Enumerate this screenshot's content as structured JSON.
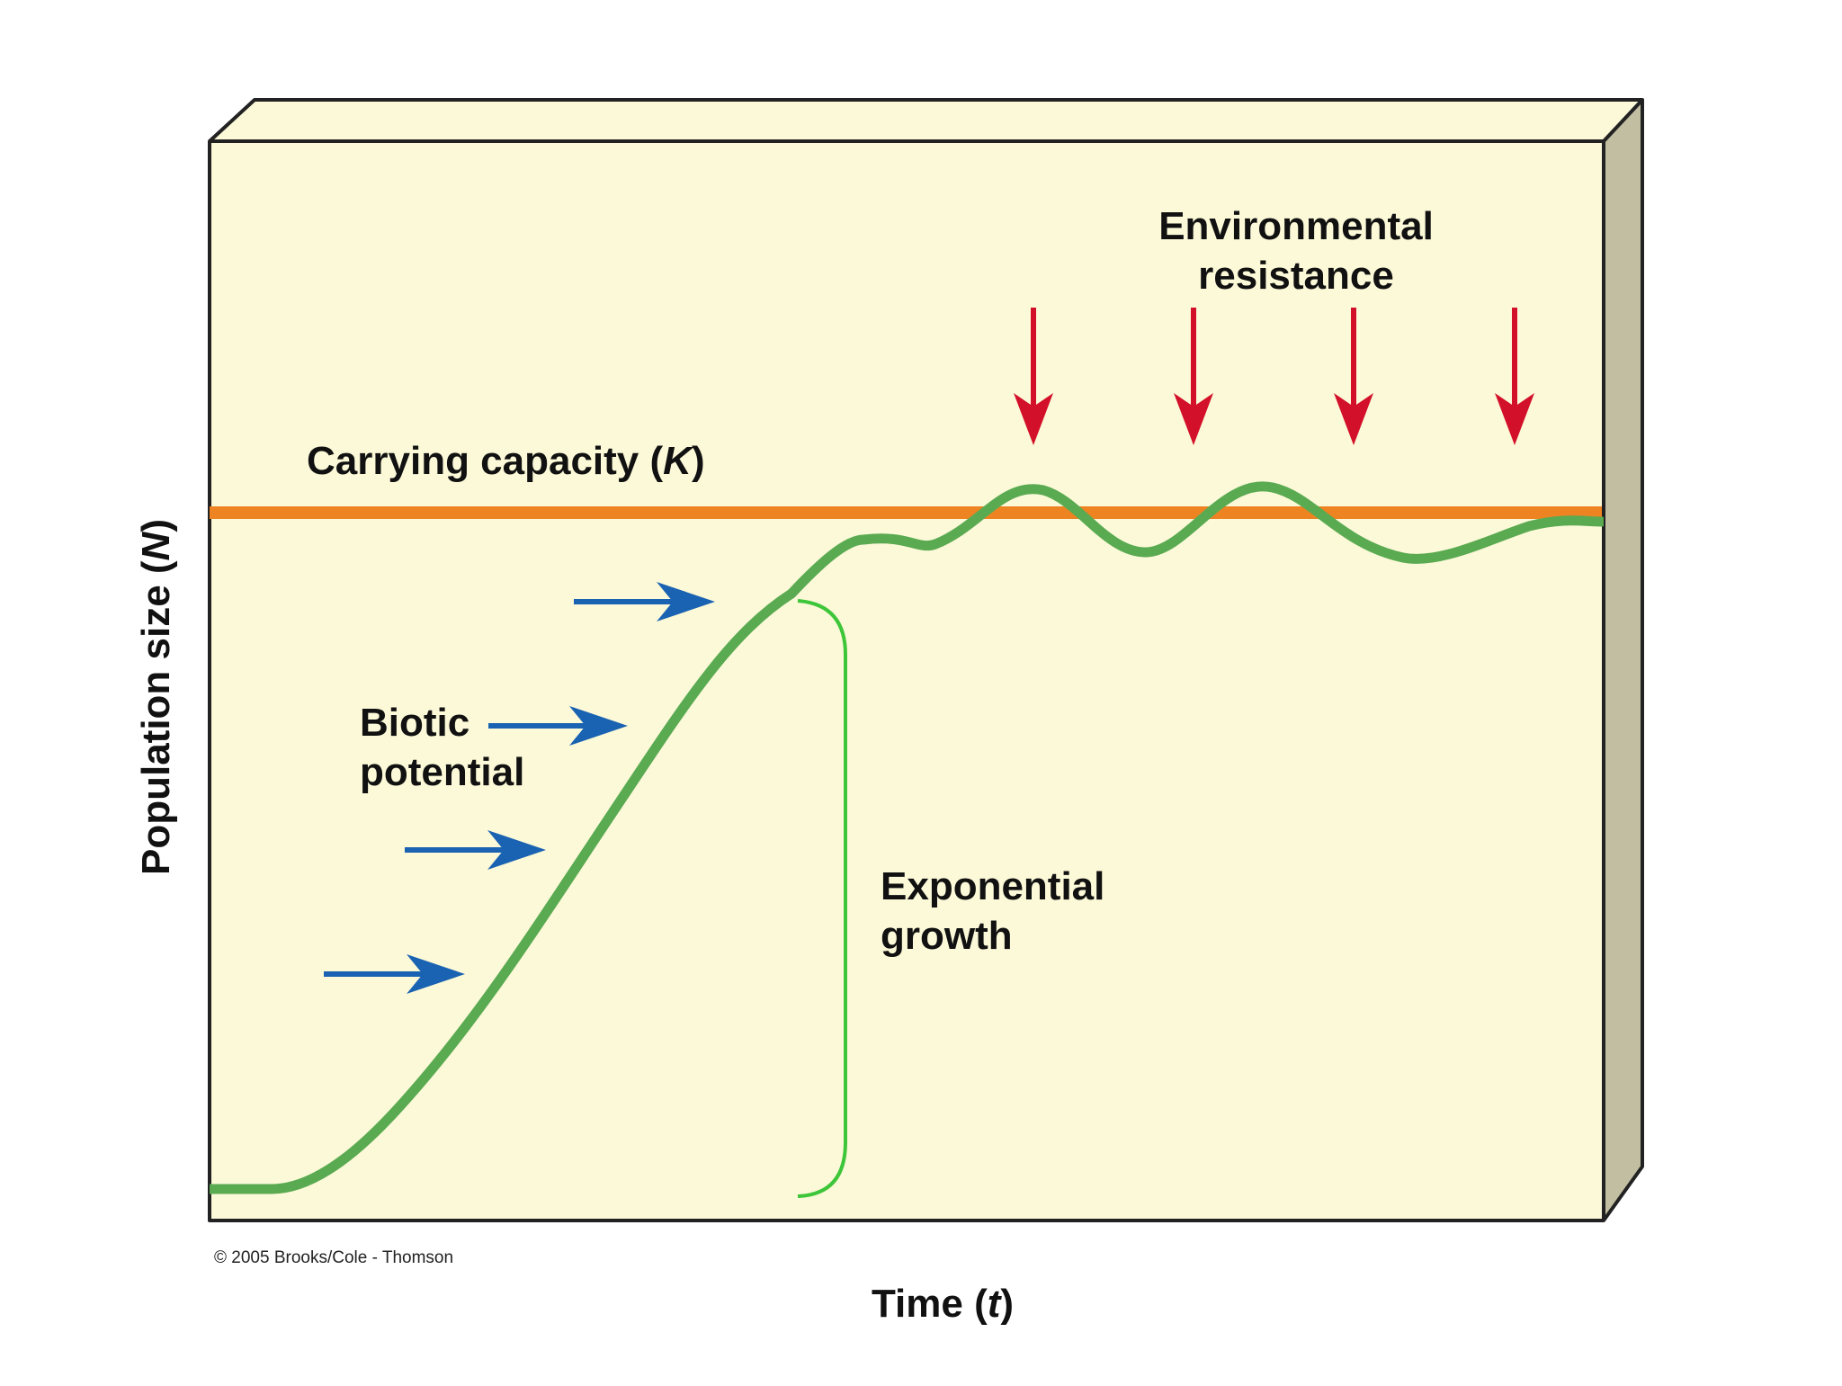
{
  "labels": {
    "environmental_line1": "Environmental",
    "environmental_line2": "resistance",
    "carrying_capacity_main": "Carrying capacity (",
    "carrying_capacity_symbol": "K",
    "carrying_capacity_close": ")",
    "biotic_line1": "Biotic",
    "biotic_line2": "potential",
    "exponential_line1": "Exponential",
    "exponential_line2": "growth",
    "y_axis_main": "Population size (",
    "y_axis_symbol": "N",
    "y_axis_close": ")",
    "x_axis_main": "Time (",
    "x_axis_symbol": "t",
    "x_axis_close": ")",
    "copyright": "© 2005 Brooks/Cole - Thomson"
  },
  "colors": {
    "panel_face": "#fcf9d8",
    "panel_top": "#fcf9d8",
    "panel_side": "#c1bea2",
    "outline": "#222222",
    "carrying_capacity_line": "#ee8322",
    "population_curve": "#5aaa52",
    "bracket": "#3ec63a",
    "biotic_arrow": "#1a62b2",
    "resistance_arrow": "#d3102a"
  },
  "icons": {
    "biotic_arrow": "arrow-right-icon",
    "resistance_arrow": "arrow-down-icon"
  }
}
